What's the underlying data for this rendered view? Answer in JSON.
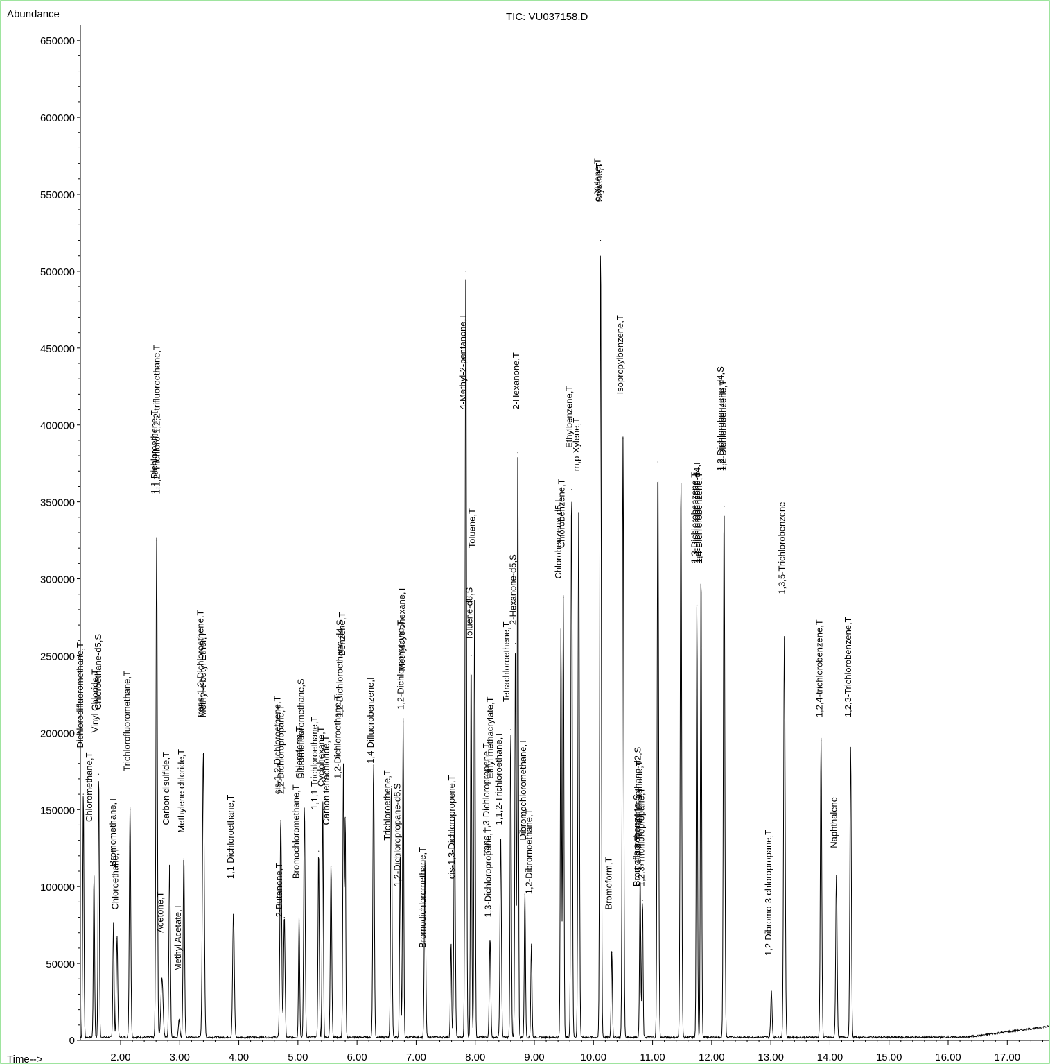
{
  "chart_data": {
    "type": "line",
    "title": "TIC: VU037158.D",
    "ylabel": "Abundance",
    "xlabel": "Time-->",
    "xlim": [
      1.32,
      17.7
    ],
    "ylim": [
      0,
      660000
    ],
    "x_ticks": [
      "2.00",
      "3.00",
      "4.00",
      "5.00",
      "6.00",
      "7.00",
      "8.00",
      "9.00",
      "10.00",
      "11.00",
      "12.00",
      "13.00",
      "14.00",
      "15.00",
      "16.00",
      "17.00"
    ],
    "y_ticks": [
      "50000",
      "100000",
      "150000",
      "200000",
      "250000",
      "300000",
      "350000",
      "400000",
      "450000",
      "500000",
      "550000",
      "600000",
      "650000"
    ],
    "x_tick_values": [
      2,
      3,
      4,
      5,
      6,
      7,
      8,
      9,
      10,
      11,
      12,
      13,
      14,
      15,
      16,
      17
    ],
    "y_tick_values": [
      50000,
      100000,
      150000,
      200000,
      250000,
      300000,
      350000,
      400000,
      450000,
      500000,
      550000,
      600000,
      650000
    ],
    "series": [
      {
        "peaks": [
          {
            "t": 1.37,
            "h": 160000,
            "w": 0.01
          },
          {
            "t": 1.55,
            "h": 107000,
            "w": 0.01
          },
          {
            "t": 1.63,
            "h": 173000,
            "w": 0.01
          },
          {
            "t": 1.88,
            "h": 75000,
            "w": 0.01
          },
          {
            "t": 1.94,
            "h": 66000,
            "w": 0.012
          },
          {
            "t": 2.16,
            "h": 150000,
            "w": 0.012
          },
          {
            "t": 2.61,
            "h": 325000,
            "w": 0.012
          },
          {
            "t": 2.7,
            "h": 39000,
            "w": 0.018
          },
          {
            "t": 2.83,
            "h": 113000,
            "w": 0.012
          },
          {
            "t": 2.99,
            "h": 12000,
            "w": 0.012
          },
          {
            "t": 3.07,
            "h": 118000,
            "w": 0.012
          },
          {
            "t": 3.4,
            "h": 186000,
            "w": 0.015
          },
          {
            "t": 3.91,
            "h": 82000,
            "w": 0.014
          },
          {
            "t": 4.71,
            "h": 143000,
            "w": 0.014
          },
          {
            "t": 4.77,
            "h": 80000,
            "w": 0.012
          },
          {
            "t": 5.02,
            "h": 78000,
            "w": 0.01
          },
          {
            "t": 5.11,
            "h": 151000,
            "w": 0.012
          },
          {
            "t": 5.35,
            "h": 123000,
            "w": 0.01
          },
          {
            "t": 5.42,
            "h": 155000,
            "w": 0.01
          },
          {
            "t": 5.56,
            "h": 113000,
            "w": 0.012
          },
          {
            "t": 5.77,
            "h": 177000,
            "w": 0.01
          },
          {
            "t": 5.8,
            "h": 145000,
            "w": 0.009
          },
          {
            "t": 6.28,
            "h": 179000,
            "w": 0.012
          },
          {
            "t": 6.58,
            "h": 165000,
            "w": 0.012
          },
          {
            "t": 6.73,
            "h": 120000,
            "w": 0.01
          },
          {
            "t": 6.78,
            "h": 207000,
            "w": 0.01
          },
          {
            "t": 7.15,
            "h": 115000,
            "w": 0.012
          },
          {
            "t": 7.59,
            "h": 62000,
            "w": 0.01
          },
          {
            "t": 7.65,
            "h": 148000,
            "w": 0.012
          },
          {
            "t": 7.84,
            "h": 500000,
            "w": 0.012
          },
          {
            "t": 7.93,
            "h": 250000,
            "w": 0.01
          },
          {
            "t": 7.99,
            "h": 290000,
            "w": 0.01
          },
          {
            "t": 8.25,
            "h": 65000,
            "w": 0.012
          },
          {
            "t": 8.43,
            "h": 130000,
            "w": 0.012
          },
          {
            "t": 8.6,
            "h": 202000,
            "w": 0.01
          },
          {
            "t": 8.68,
            "h": 258000,
            "w": 0.01
          },
          {
            "t": 8.72,
            "h": 382000,
            "w": 0.01
          },
          {
            "t": 8.84,
            "h": 95000,
            "w": 0.01
          },
          {
            "t": 8.95,
            "h": 61000,
            "w": 0.01
          },
          {
            "t": 9.45,
            "h": 268000,
            "w": 0.01
          },
          {
            "t": 9.49,
            "h": 288000,
            "w": 0.01
          },
          {
            "t": 9.63,
            "h": 358000,
            "w": 0.012
          },
          {
            "t": 9.75,
            "h": 343000,
            "w": 0.012
          },
          {
            "t": 10.12,
            "h": 520000,
            "w": 0.012
          },
          {
            "t": 10.31,
            "h": 57000,
            "w": 0.01
          },
          {
            "t": 10.5,
            "h": 391000,
            "w": 0.012
          },
          {
            "t": 10.79,
            "h": 105000,
            "w": 0.01
          },
          {
            "t": 10.83,
            "h": 91000,
            "w": 0.009
          },
          {
            "t": 11.09,
            "h": 376000,
            "w": 0.012
          },
          {
            "t": 11.48,
            "h": 368000,
            "w": 0.012
          },
          {
            "t": 11.75,
            "h": 283000,
            "w": 0.01
          },
          {
            "t": 11.82,
            "h": 310000,
            "w": 0.01
          },
          {
            "t": 12.21,
            "h": 347000,
            "w": 0.012
          },
          {
            "t": 13.01,
            "h": 30000,
            "w": 0.012
          },
          {
            "t": 13.23,
            "h": 261000,
            "w": 0.013
          },
          {
            "t": 13.85,
            "h": 195000,
            "w": 0.012
          },
          {
            "t": 14.11,
            "h": 106000,
            "w": 0.012
          },
          {
            "t": 14.35,
            "h": 190000,
            "w": 0.012
          }
        ]
      }
    ],
    "annotations": [
      {
        "text": "Dichlorodifluoromethane,T",
        "t": 1.37,
        "y": 190000
      },
      {
        "text": "Chloromethane,T",
        "t": 1.52,
        "y": 142000
      },
      {
        "text": "Vinyl Chloride,T",
        "t": 1.62,
        "y": 200000
      },
      {
        "text": "Chloroethane-d5,S",
        "t": 1.67,
        "y": 215000
      },
      {
        "text": "Bromomethane,T",
        "t": 1.92,
        "y": 113000
      },
      {
        "text": "Chloroethane,T",
        "t": 1.96,
        "y": 85000
      },
      {
        "text": "Trichlorofluoromethane,T",
        "t": 2.16,
        "y": 175000
      },
      {
        "text": "1,1-Dichloroethene,T",
        "t": 2.62,
        "y": 355000
      },
      {
        "text": "1,1,2-Trichloro-1,2,2-trifluoroethane,T",
        "t": 2.66,
        "y": 355000
      },
      {
        "text": "Acetone,T",
        "t": 2.72,
        "y": 70000
      },
      {
        "text": "Carbon disulfide,T",
        "t": 2.82,
        "y": 140000
      },
      {
        "text": "Methyl Acetate,T",
        "t": 3.02,
        "y": 45000
      },
      {
        "text": "Methylene chloride,T",
        "t": 3.08,
        "y": 135000
      },
      {
        "text": "trans-1,2-Dichloroethene,T",
        "t": 3.4,
        "y": 210000
      },
      {
        "text": "Methyl-t-butyl Ether,T",
        "t": 3.44,
        "y": 210000
      },
      {
        "text": "1,1-Dichloroethane,T",
        "t": 3.91,
        "y": 105000
      },
      {
        "text": "2-Butanone,T",
        "t": 4.73,
        "y": 80000
      },
      {
        "text": "cis-1,2-Dichloroethene,T",
        "t": 4.7,
        "y": 160000
      },
      {
        "text": "2,2-Dichloropropane,T",
        "t": 4.76,
        "y": 160000
      },
      {
        "text": "Bromochloromethane,T",
        "t": 5.02,
        "y": 105000
      },
      {
        "text": "Chloroform,T",
        "t": 5.07,
        "y": 170000
      },
      {
        "text": "Dibromofluoromethane,S",
        "t": 5.1,
        "y": 170000
      },
      {
        "text": "1,1,1-Trichloroethane,T",
        "t": 5.33,
        "y": 150000
      },
      {
        "text": "Carbon tetrachloride,T",
        "t": 5.53,
        "y": 140000
      },
      {
        "text": "Cyclohexane,T",
        "t": 5.44,
        "y": 165000
      },
      {
        "text": "1,2-Dichloroethane,T",
        "t": 5.72,
        "y": 170000
      },
      {
        "text": "1,2-Dichloroethane-d4,S",
        "t": 5.76,
        "y": 210000
      },
      {
        "text": "Benzene,T",
        "t": 5.8,
        "y": 250000
      },
      {
        "text": "1,4-Difluorobenzene,I",
        "t": 6.28,
        "y": 180000
      },
      {
        "text": "Trichloroethene,T",
        "t": 6.56,
        "y": 130000
      },
      {
        "text": "1,2-Dichloropropane-d6,S",
        "t": 6.73,
        "y": 100000
      },
      {
        "text": "1,2-Dichloropropane,T",
        "t": 6.79,
        "y": 215000
      },
      {
        "text": "Methylcyclohexane,T",
        "t": 6.81,
        "y": 240000
      },
      {
        "text": "Bromodichloromethane,T",
        "t": 7.16,
        "y": 60000
      },
      {
        "text": "cis-1,3-Dichloropropene,T",
        "t": 7.65,
        "y": 105000
      },
      {
        "text": "4-Methyl-2-pentanone,T",
        "t": 7.84,
        "y": 410000
      },
      {
        "text": "Toluene-d8,S",
        "t": 7.95,
        "y": 260000
      },
      {
        "text": "Toluene,T",
        "t": 8.0,
        "y": 320000
      },
      {
        "text": "trans-1,3-Dichloropropene,T",
        "t": 8.24,
        "y": 120000
      },
      {
        "text": "Ethyl methacrylate,T",
        "t": 8.3,
        "y": 170000
      },
      {
        "text": "1,1,2-Trichloroethane,T",
        "t": 8.45,
        "y": 140000
      },
      {
        "text": "1,3-Dichloropropane,T",
        "t": 8.27,
        "y": 80000
      },
      {
        "text": "Tetrachloroethene,T",
        "t": 8.58,
        "y": 220000
      },
      {
        "text": "2-Hexanone-d5,S",
        "t": 8.69,
        "y": 270000
      },
      {
        "text": "2-Hexanone,T",
        "t": 8.74,
        "y": 410000
      },
      {
        "text": "Dibromochloromethane,T",
        "t": 8.86,
        "y": 130000
      },
      {
        "text": "1,2-Dibromoethane,T",
        "t": 8.96,
        "y": 95000
      },
      {
        "text": "Chlorobenzene-d5,I",
        "t": 9.46,
        "y": 300000
      },
      {
        "text": "Chlorobenzene,T",
        "t": 9.51,
        "y": 320000
      },
      {
        "text": "Ethylbenzene,T",
        "t": 9.64,
        "y": 385000
      },
      {
        "text": "m,p-Xylene,T",
        "t": 9.76,
        "y": 370000
      },
      {
        "text": "o-Xylene,T",
        "t": 10.12,
        "y": 545000
      },
      {
        "text": "Styrene,T",
        "t": 10.15,
        "y": 545000
      },
      {
        "text": "Bromoform,T",
        "t": 10.31,
        "y": 85000
      },
      {
        "text": "Isopropylbenzene,T",
        "t": 10.5,
        "y": 420000
      },
      {
        "text": "Bromofluorobenzene,S",
        "t": 10.78,
        "y": 100000
      },
      {
        "text": "1,1,2,2-Tetrachloroethane-d2,S",
        "t": 10.8,
        "y": 110000
      },
      {
        "text": "1,1,2,2-Tetrachloroethane,T",
        "t": 10.83,
        "y": 110000
      },
      {
        "text": "1,2,3-Trichloropropane,T",
        "t": 10.86,
        "y": 100000
      },
      {
        "text": "1,3-Dichlorobenzene,T",
        "t": 11.76,
        "y": 310000
      },
      {
        "text": "1,4-Dichlorobenzene-d4,I",
        "t": 11.8,
        "y": 310000
      },
      {
        "text": "1,4-Dichlorobenzene,T",
        "t": 11.84,
        "y": 310000
      },
      {
        "text": "1,2-Dichlorobenzene-d4,S",
        "t": 12.2,
        "y": 370000
      },
      {
        "text": "1,2-Dichlorobenzene,T",
        "t": 12.24,
        "y": 370000
      },
      {
        "text": "1,2-Dibromo-3-chloropropane,T",
        "t": 13.01,
        "y": 55000
      },
      {
        "text": "1,3,5-Trichlorobenzene",
        "t": 13.24,
        "y": 290000
      },
      {
        "text": "1,2,4-trichlorobenzene,T",
        "t": 13.87,
        "y": 210000
      },
      {
        "text": "Naphthalene",
        "t": 14.12,
        "y": 125000
      },
      {
        "text": "1,2,3-Trichlorobenzene,T",
        "t": 14.36,
        "y": 210000
      }
    ]
  }
}
